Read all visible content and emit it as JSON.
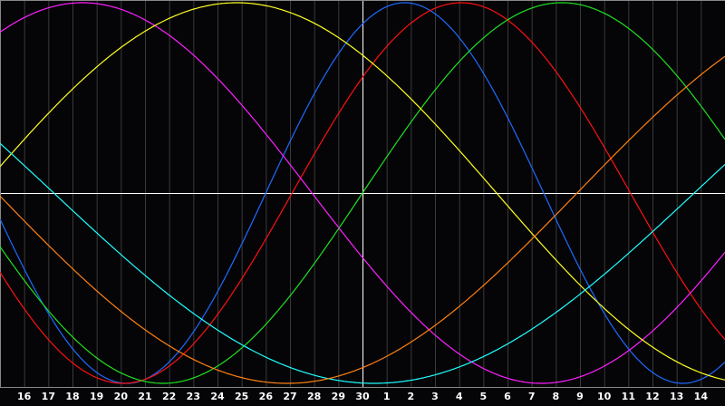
{
  "chart_data": {
    "type": "line",
    "title": "",
    "xlabel": "",
    "ylabel": "",
    "x_ticks": [
      "16",
      "17",
      "18",
      "19",
      "20",
      "21",
      "22",
      "23",
      "24",
      "25",
      "26",
      "27",
      "28",
      "29",
      "30",
      "1",
      "2",
      "3",
      "4",
      "5",
      "6",
      "7",
      "8",
      "9",
      "10",
      "11",
      "12",
      "13",
      "14"
    ],
    "center_tick": "30",
    "x_range_days_from_center": [
      -15,
      15
    ],
    "ylim": [
      -1,
      1
    ],
    "grid": true,
    "legend": "none",
    "background": "#050508",
    "grid_color": "#3a3a3a",
    "axis_color": "#ffffff",
    "series": [
      {
        "color": "#1e6bff",
        "period_days": 23,
        "phase_at_center": 0.174
      },
      {
        "color": "#ff1010",
        "period_days": 28,
        "phase_at_center": 0.104
      },
      {
        "color": "#20e020",
        "period_days": 33,
        "phase_at_center": 0.0
      },
      {
        "color": "#ff20ff",
        "period_days": 38,
        "phase_at_center": 0.555
      },
      {
        "color": "#ffff20",
        "period_days": 43,
        "phase_at_center": 0.371
      },
      {
        "color": "#20ffff",
        "period_days": 53,
        "phase_at_center": 0.741
      },
      {
        "color": "#ff8010",
        "period_days": 48,
        "phase_at_center": 0.815
      }
    ]
  }
}
